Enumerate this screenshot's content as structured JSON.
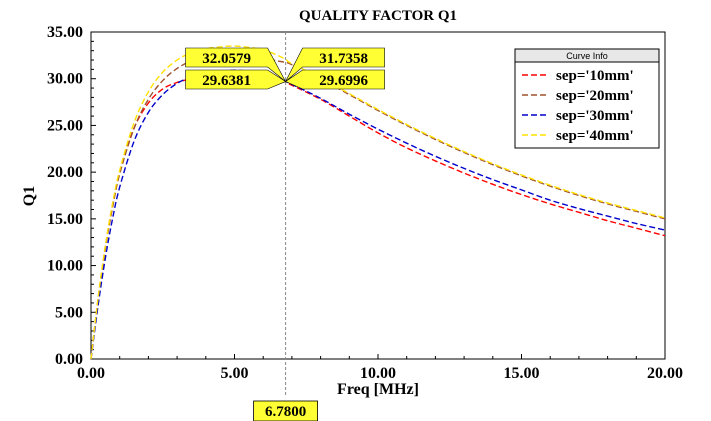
{
  "chart_data": {
    "type": "line",
    "title": "QUALITY FACTOR Q1",
    "xlabel": "Freq [MHz]",
    "ylabel": "Q1",
    "xlim": [
      0,
      20
    ],
    "ylim": [
      0,
      35
    ],
    "x_ticks": [
      "0.00",
      "5.00",
      "10.00",
      "15.00",
      "20.00"
    ],
    "y_ticks": [
      "0.00",
      "5.00",
      "10.00",
      "15.00",
      "20.00",
      "25.00",
      "30.00",
      "35.00"
    ],
    "grid": false,
    "legend_title": "Curve Info",
    "legend_position": "top-right",
    "x": [
      0,
      0.25,
      0.5,
      0.75,
      1,
      1.5,
      2,
      2.5,
      3,
      3.5,
      4,
      4.5,
      5,
      5.5,
      6,
      6.5,
      6.78,
      7,
      8,
      9,
      10,
      11,
      12,
      13,
      14,
      15,
      16,
      17,
      18,
      19,
      20
    ],
    "series": [
      {
        "name": "sep='10mm'",
        "color": "#ff0000",
        "values": [
          0.0,
          6.5,
          12.0,
          16.5,
          20.0,
          24.7,
          27.4,
          28.9,
          29.6,
          30.0,
          30.2,
          30.3,
          30.4,
          30.35,
          30.2,
          29.9,
          29.64,
          29.3,
          27.8,
          26.0,
          24.2,
          22.6,
          21.2,
          19.9,
          18.7,
          17.6,
          16.6,
          15.7,
          14.8,
          14.0,
          13.2
        ]
      },
      {
        "name": "sep='20mm'",
        "color": "#a0522d",
        "values": [
          0.0,
          6.4,
          11.8,
          16.2,
          19.8,
          24.7,
          27.8,
          29.8,
          31.1,
          31.9,
          32.3,
          32.5,
          32.55,
          32.4,
          32.2,
          31.9,
          31.74,
          31.5,
          30.0,
          28.3,
          26.6,
          25.0,
          23.5,
          22.1,
          20.8,
          19.6,
          18.5,
          17.5,
          16.6,
          15.8,
          15.0
        ]
      },
      {
        "name": "sep='30mm'",
        "color": "#0000cc",
        "values": [
          0.0,
          5.8,
          10.8,
          15.0,
          18.4,
          23.3,
          26.4,
          28.3,
          29.5,
          30.2,
          30.6,
          30.8,
          30.9,
          30.8,
          30.5,
          30.1,
          29.7,
          29.4,
          27.9,
          26.2,
          24.6,
          23.1,
          21.7,
          20.4,
          19.2,
          18.1,
          17.0,
          16.1,
          15.3,
          14.5,
          13.8
        ]
      },
      {
        "name": "sep='40mm'",
        "color": "#ffe000",
        "values": [
          0.0,
          6.6,
          12.1,
          16.6,
          20.2,
          25.3,
          28.6,
          30.7,
          32.0,
          32.8,
          33.2,
          33.4,
          33.5,
          33.35,
          33.1,
          32.5,
          32.06,
          31.6,
          30.1,
          28.4,
          26.7,
          25.1,
          23.6,
          22.2,
          20.9,
          19.7,
          18.6,
          17.6,
          16.7,
          15.9,
          15.1
        ]
      }
    ],
    "marker": {
      "x": 6.78,
      "x_label": "6.7800",
      "values": [
        {
          "label": "32.0579",
          "value": 32.0579,
          "side": "left"
        },
        {
          "label": "31.7358",
          "value": 31.7358,
          "side": "right"
        },
        {
          "label": "29.6381",
          "value": 29.6381,
          "side": "left"
        },
        {
          "label": "29.6996",
          "value": 29.6996,
          "side": "right"
        }
      ]
    }
  }
}
